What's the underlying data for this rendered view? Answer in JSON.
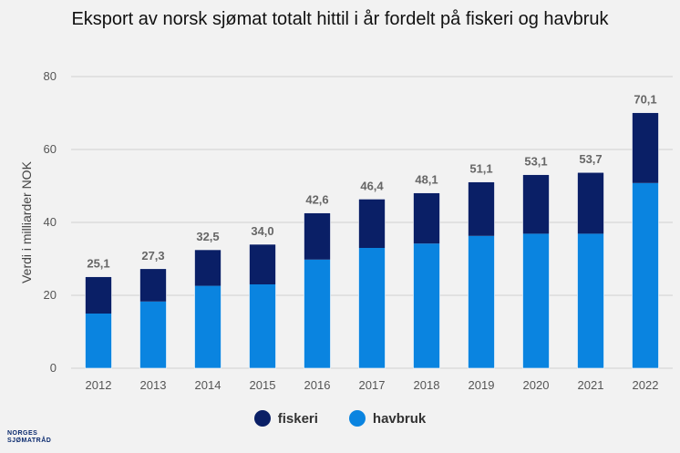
{
  "chart_data": {
    "type": "bar",
    "stacked": true,
    "title": "Eksport av norsk sjømat totalt hittil i år fordelt på fiskeri og havbruk",
    "xlabel": "",
    "ylabel": "Verdi i milliarder NOK",
    "ylim": [
      0,
      80
    ],
    "yticks": [
      0,
      20,
      40,
      60,
      80
    ],
    "categories": [
      "2012",
      "2013",
      "2014",
      "2015",
      "2016",
      "2017",
      "2018",
      "2019",
      "2020",
      "2021",
      "2022"
    ],
    "series": [
      {
        "name": "havbruk",
        "color": "#0a84e0",
        "values": [
          15.0,
          18.3,
          22.6,
          23.0,
          29.8,
          33.0,
          34.2,
          36.3,
          36.9,
          36.9,
          50.8
        ]
      },
      {
        "name": "fiskeri",
        "color": "#0a1f66",
        "values": [
          10.1,
          9.0,
          9.9,
          11.0,
          12.8,
          13.4,
          13.9,
          14.8,
          16.2,
          16.8,
          19.3
        ]
      }
    ],
    "totals": [
      "25,1",
      "27,3",
      "32,5",
      "34,0",
      "42,6",
      "46,4",
      "48,1",
      "51,1",
      "53,1",
      "53,7",
      "70,1"
    ],
    "legend_position": "bottom",
    "grid": "horizontal"
  },
  "legend": {
    "fiskeri": "fiskeri",
    "havbruk": "havbruk"
  },
  "logo": {
    "line1": "NORGES",
    "line2": "SJØMATRÅD"
  }
}
